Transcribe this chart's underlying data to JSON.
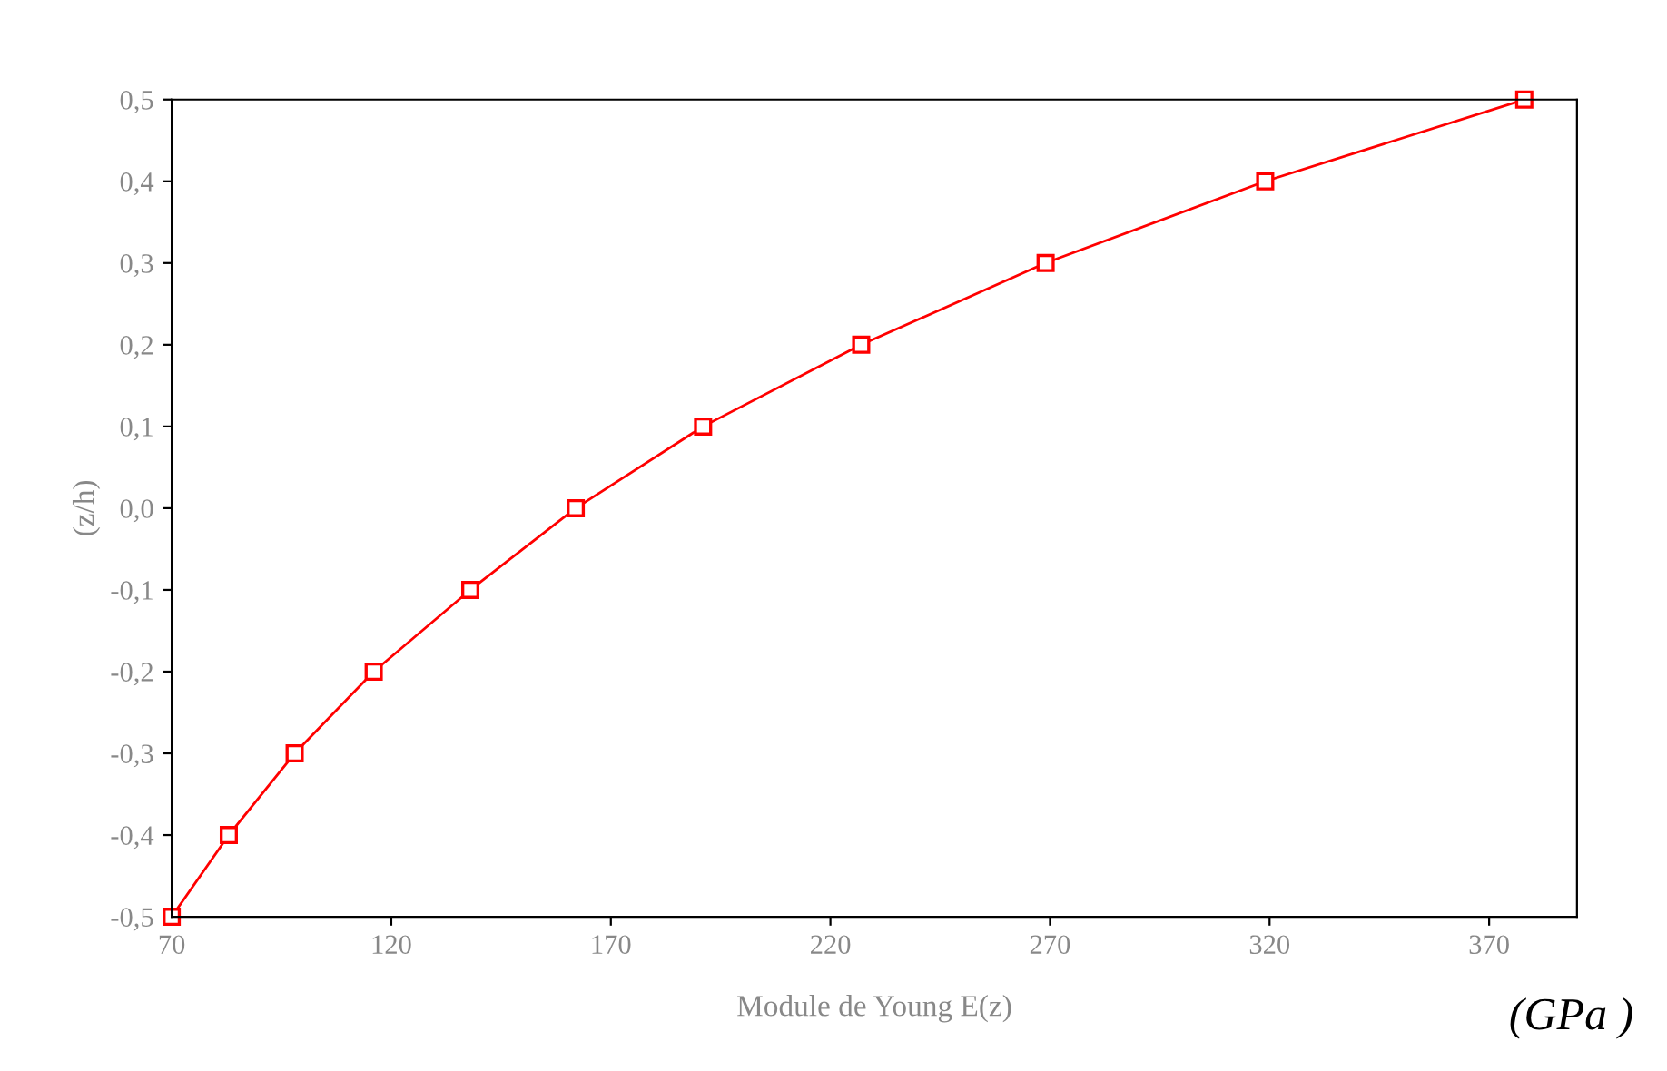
{
  "chart_data": {
    "type": "line",
    "xlabel": "Module de Young E(z)",
    "ylabel": "(z/h)",
    "annotations": [
      "(GPa )"
    ],
    "series": [
      {
        "color": "#ff0000",
        "x": [
          70,
          83,
          98,
          116,
          138,
          162,
          191,
          227,
          269,
          319,
          378
        ],
        "values": [
          -0.5,
          -0.4,
          -0.3,
          -0.2,
          -0.1,
          0.0,
          0.1,
          0.2,
          0.3,
          0.4,
          0.5
        ]
      }
    ],
    "marker": "square",
    "line_style": "solid",
    "xlim": [
      70,
      390
    ],
    "xticks": [
      70,
      120,
      170,
      220,
      270,
      320,
      370
    ],
    "ylim": [
      -0.5,
      0.5
    ],
    "yticks": [
      {
        "value": -0.5,
        "label": "-0,5"
      },
      {
        "value": -0.4,
        "label": "-0,4"
      },
      {
        "value": -0.3,
        "label": "-0,3"
      },
      {
        "value": -0.2,
        "label": "-0,2"
      },
      {
        "value": -0.1,
        "label": "-0,1"
      },
      {
        "value": 0.0,
        "label": "0,0"
      },
      {
        "value": 0.1,
        "label": "0,1"
      },
      {
        "value": 0.2,
        "label": "0,2"
      },
      {
        "value": 0.3,
        "label": "0,3"
      },
      {
        "value": 0.4,
        "label": "0,4"
      },
      {
        "value": 0.5,
        "label": "0,5"
      }
    ],
    "grid": false,
    "legend": false
  }
}
